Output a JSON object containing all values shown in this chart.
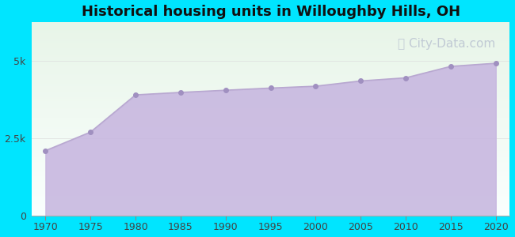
{
  "title": "Historical housing units in Willoughby Hills, OH",
  "title_fontsize": 13,
  "title_fontweight": "bold",
  "background_color": "#00e5ff",
  "plot_bg_gradient_top": "#e8f5e8",
  "plot_bg_gradient_bottom": "#f8fff8",
  "line_color": "#b8a8d0",
  "fill_color": "#c8b8e0",
  "fill_alpha": 0.9,
  "marker_color": "#a090c0",
  "marker_size": 4,
  "years": [
    1970,
    1975,
    1980,
    1985,
    1990,
    1995,
    2000,
    2005,
    2010,
    2015,
    2020
  ],
  "values": [
    2100,
    2700,
    3900,
    3980,
    4050,
    4120,
    4180,
    4350,
    4450,
    4820,
    4920
  ],
  "ylim": [
    0,
    6250
  ],
  "yticks": [
    0,
    2500,
    5000
  ],
  "ytick_labels": [
    "0",
    "2.5k",
    "5k"
  ],
  "xticks": [
    1970,
    1975,
    1980,
    1985,
    1990,
    1995,
    2000,
    2005,
    2010,
    2015,
    2020
  ],
  "grid_color": "#dddddd",
  "grid_alpha": 0.7,
  "watermark_text": "ⓘ City-Data.com",
  "watermark_color": "#b0b8cc",
  "watermark_alpha": 0.7,
  "watermark_fontsize": 11
}
